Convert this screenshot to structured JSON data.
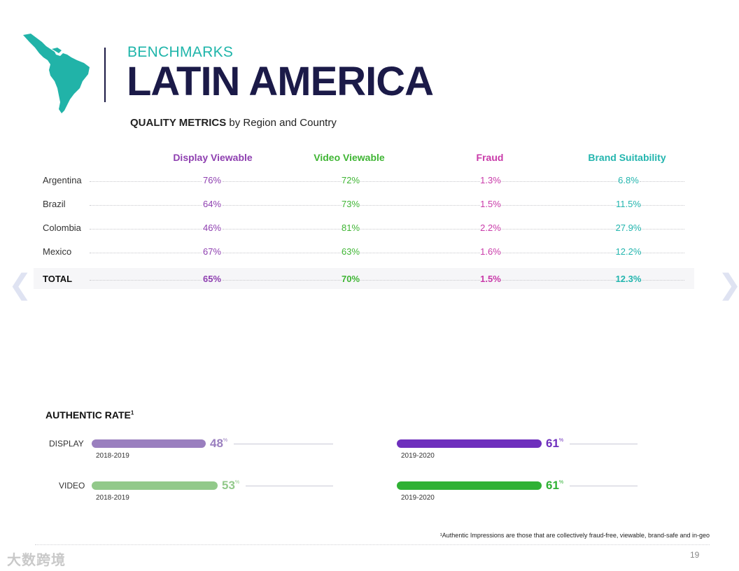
{
  "header": {
    "kicker": "BENCHMARKS",
    "title": "LATIN AMERICA",
    "subtitle_bold": "QUALITY METRICS",
    "subtitle_rest": " by Region and Country"
  },
  "table": {
    "columns": [
      "Display Viewable",
      "Video Viewable",
      "Fraud",
      "Brand Suitability"
    ],
    "rows": [
      {
        "label": "Argentina",
        "values": [
          "76%",
          "72%",
          "1.3%",
          "6.8%"
        ]
      },
      {
        "label": "Brazil",
        "values": [
          "64%",
          "73%",
          "1.5%",
          "11.5%"
        ]
      },
      {
        "label": "Colombia",
        "values": [
          "46%",
          "81%",
          "2.2%",
          "27.9%"
        ]
      },
      {
        "label": "Mexico",
        "values": [
          "67%",
          "63%",
          "1.6%",
          "12.2%"
        ]
      }
    ],
    "total": {
      "label": "TOTAL",
      "values": [
        "65%",
        "70%",
        "1.5%",
        "12.3%"
      ]
    }
  },
  "authentic": {
    "title": "AUTHENTIC RATE",
    "title_sup": "1",
    "display": {
      "label": "DISPLAY",
      "before": {
        "period": "2018-2019",
        "value": "48",
        "fraction": 0.48
      },
      "after": {
        "period": "2019-2020",
        "value": "61",
        "fraction": 0.61
      }
    },
    "video": {
      "label": "VIDEO",
      "before": {
        "period": "2018-2019",
        "value": "53",
        "fraction": 0.53
      },
      "after": {
        "period": "2019-2020",
        "value": "61",
        "fraction": 0.61
      }
    },
    "unit": "%"
  },
  "footnote": "¹Authentic Impressions are those that are collectively fraud-free, viewable, brand-safe and in-geo",
  "page_number": "19",
  "watermark": "大数跨境",
  "icons": {
    "map": "latin-america-map-icon",
    "prev": "chevron-left-icon",
    "next": "chevron-right-icon"
  },
  "colors": {
    "teal": "#1fb5aa",
    "navy": "#1b1a48",
    "display": "#8e3fb0",
    "video": "#3fb534",
    "fraud": "#c93aa9",
    "brand": "#23b5ae",
    "display_light": "#9a7fbf",
    "display_dark": "#6e2fbd",
    "video_light": "#92c98a",
    "video_dark": "#2fb134"
  }
}
